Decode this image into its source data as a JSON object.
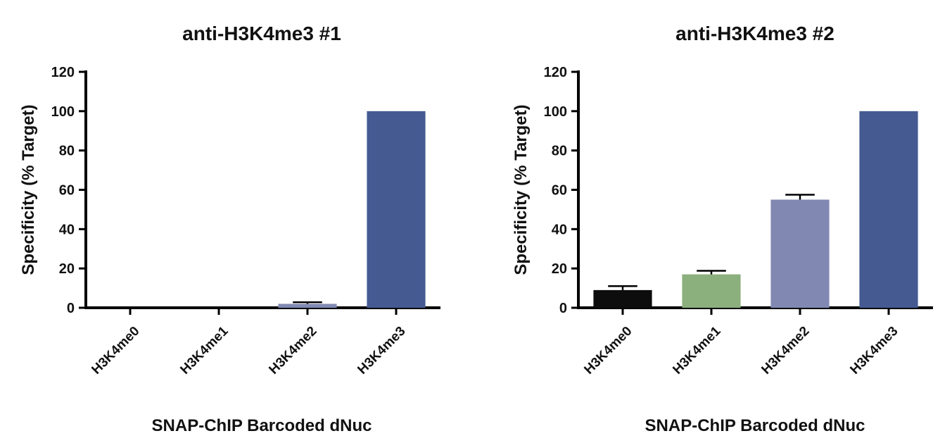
{
  "chart_data": [
    {
      "type": "bar",
      "title": "anti-H3K4me3 #1",
      "xlabel": "SNAP-ChIP Barcoded dNuc",
      "ylabel": "Specificity (% Target)",
      "ylim": [
        0,
        120
      ],
      "yticks": [
        0,
        20,
        40,
        60,
        80,
        100,
        120
      ],
      "categories": [
        "H3K4me0",
        "H3K4me1",
        "H3K4me2",
        "H3K4me3"
      ],
      "values": [
        0,
        0,
        2,
        100
      ],
      "errors": [
        0,
        0,
        0.8,
        0
      ],
      "colors": [
        "#0d0d0d",
        "#8bb07d",
        "#8189b3",
        "#445a91"
      ],
      "grid": false,
      "legend": "none"
    },
    {
      "type": "bar",
      "title": "anti-H3K4me3 #2",
      "xlabel": "SNAP-ChIP Barcoded dNuc",
      "ylabel": "Specificity (% Target)",
      "ylim": [
        0,
        120
      ],
      "yticks": [
        0,
        20,
        40,
        60,
        80,
        100,
        120
      ],
      "categories": [
        "H3K4me0",
        "H3K4me1",
        "H3K4me2",
        "H3K4me3"
      ],
      "values": [
        9,
        17,
        55,
        100
      ],
      "errors": [
        2,
        1.8,
        2.5,
        0
      ],
      "colors": [
        "#0d0d0d",
        "#8bb07d",
        "#8189b3",
        "#445a91"
      ],
      "grid": false,
      "legend": "none"
    }
  ]
}
